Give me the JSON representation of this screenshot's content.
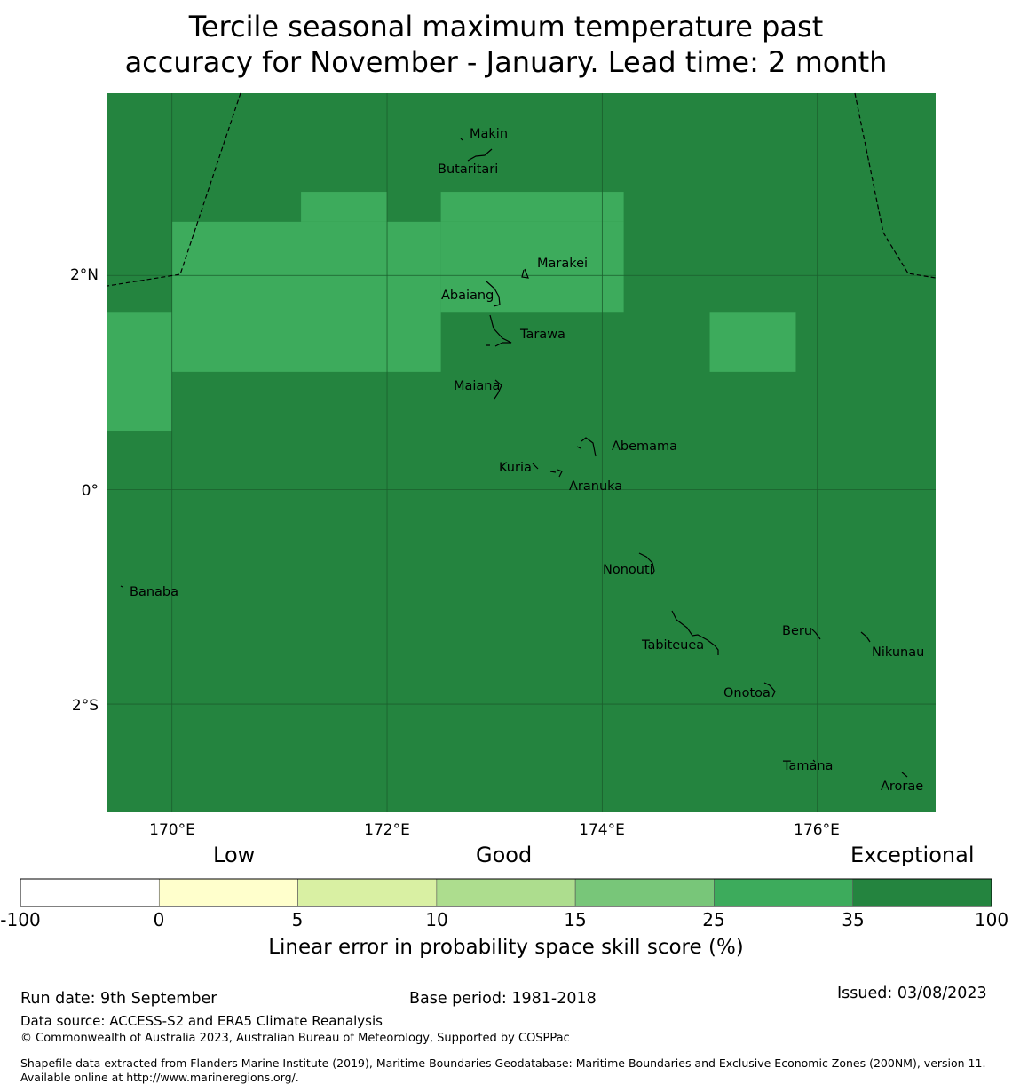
{
  "title": {
    "line1": "Tercile seasonal maximum temperature past",
    "line2": "accuracy for November - January. Lead time: 2 month"
  },
  "colors": {
    "exceptional": "#24843f",
    "good_35": "#3dab5c",
    "grid": "#1b5e2d",
    "eez_line": "#000000"
  },
  "map": {
    "lon_range": [
      169.4,
      177.1
    ],
    "lat_range": [
      -3.01,
      3.7
    ],
    "gridlines": {
      "lon": [
        170,
        172,
        174,
        176
      ],
      "lat": [
        2,
        0,
        -2
      ]
    },
    "lon_tick_labels": [
      "170°E",
      "172°E",
      "174°E",
      "176°E"
    ],
    "lat_tick_labels": [
      "2°N",
      "0°",
      "2°S"
    ],
    "background_category": "35-100",
    "skill_cells_25_35": [
      {
        "lon": [
          171.2,
          172.0
        ],
        "lat": [
          2.5,
          2.78
        ]
      },
      {
        "lon": [
          172.5,
          174.2
        ],
        "lat": [
          2.5,
          2.78
        ]
      },
      {
        "lon": [
          170.0,
          172.5
        ],
        "lat": [
          1.1,
          2.5
        ]
      },
      {
        "lon": [
          172.5,
          174.2
        ],
        "lat": [
          1.66,
          2.5
        ]
      },
      {
        "lon": [
          169.4,
          170.0
        ],
        "lat": [
          0.55,
          1.66
        ]
      },
      {
        "lon": [
          175.0,
          175.8
        ],
        "lat": [
          1.1,
          1.66
        ]
      }
    ],
    "islands": [
      {
        "name": "Makin",
        "lon": 172.98,
        "lat": 3.32
      },
      {
        "name": "Butaritari",
        "lon": 172.8,
        "lat": 3.0
      },
      {
        "name": "Marakei",
        "lon": 173.28,
        "lat": 2.03
      },
      {
        "name": "Abaiang",
        "lon": 172.97,
        "lat": 1.86
      },
      {
        "name": "Tarawa",
        "lon": 173.03,
        "lat": 1.4
      },
      {
        "name": "Maiana",
        "lon": 173.0,
        "lat": 0.93
      },
      {
        "name": "Abemama",
        "lon": 173.85,
        "lat": 0.4
      },
      {
        "name": "Kuria",
        "lon": 173.41,
        "lat": 0.22
      },
      {
        "name": "Aranuka",
        "lon": 173.63,
        "lat": 0.17
      },
      {
        "name": "Nonouti",
        "lon": 174.43,
        "lat": -0.65
      },
      {
        "name": "Banaba",
        "lon": 169.53,
        "lat": -0.86
      },
      {
        "name": "Tabiteuea",
        "lon": 174.85,
        "lat": -1.35
      },
      {
        "name": "Beru",
        "lon": 175.98,
        "lat": -1.33
      },
      {
        "name": "Nikunau",
        "lon": 176.45,
        "lat": -1.38
      },
      {
        "name": "Onotoa",
        "lon": 175.58,
        "lat": -1.85
      },
      {
        "name": "Tamana",
        "lon": 175.98,
        "lat": -2.5
      },
      {
        "name": "Arorae",
        "lon": 176.82,
        "lat": -2.65
      }
    ]
  },
  "colorbar": {
    "categories": [
      "Low",
      "Good",
      "Exceptional"
    ],
    "bins": [
      {
        "range": "-100 to 0",
        "color": "#ffffff"
      },
      {
        "range": "0 to 5",
        "color": "#ffffcc"
      },
      {
        "range": "5 to 10",
        "color": "#d9f0a3"
      },
      {
        "range": "10 to 15",
        "color": "#addd8e"
      },
      {
        "range": "15 to 25",
        "color": "#78c679"
      },
      {
        "range": "25 to 35",
        "color": "#3dab5c"
      },
      {
        "range": "35 to 100",
        "color": "#24843f"
      }
    ],
    "ticks": [
      "-100",
      "0",
      "5",
      "10",
      "15",
      "25",
      "35",
      "100"
    ],
    "label": "Linear error in probability space skill score (%)"
  },
  "footer": {
    "run_date": "Run date: 9th September",
    "base_period": "Base period: 1981-2018",
    "issued": "Issued: 03/08/2023",
    "data_source": "Data source: ACCESS-S2 and ERA5 Climate Reanalysis",
    "copyright": "© Commonwealth of Australia 2023, Australian Bureau of Meteorology, Supported by COSPPac",
    "shapefile": "Shapefile data extracted from Flanders Marine Institute (2019), Maritime Boundaries Geodatabase: Maritime Boundaries and Exclusive Economic Zones (200NM), version 11. Available online at http://www.marineregions.org/."
  }
}
